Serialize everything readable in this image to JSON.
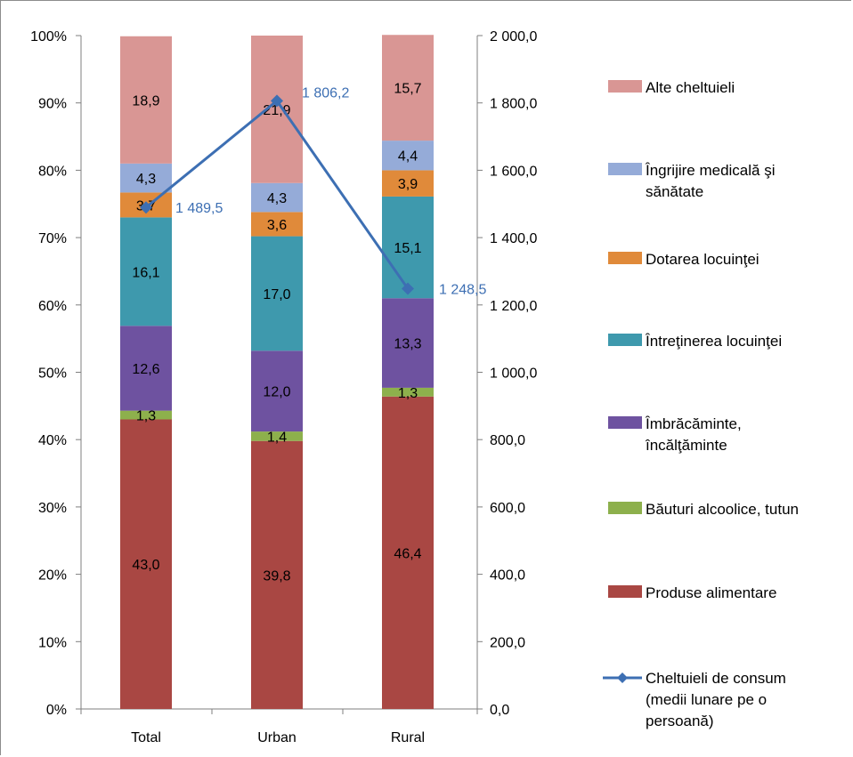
{
  "chart_data": {
    "type": "bar",
    "stacked": true,
    "categories": [
      "Total",
      "Urban",
      "Rural"
    ],
    "series": [
      {
        "name": "Produse alimentare",
        "values": [
          43.0,
          39.8,
          46.4
        ],
        "labels": [
          "43,0",
          "39,8",
          "46,4"
        ],
        "color": "#a94743"
      },
      {
        "name": "Băuturi alcoolice, tutun",
        "values": [
          1.3,
          1.4,
          1.3
        ],
        "labels": [
          "1,3",
          "1,4",
          "1,3"
        ],
        "color": "#8db04c"
      },
      {
        "name": "Îmbrăcăminte, încălţăminte",
        "values": [
          12.6,
          12.0,
          13.3
        ],
        "labels": [
          "12,6",
          "12,0",
          "13,3"
        ],
        "color": "#6e52a0"
      },
      {
        "name": "Întreţinerea locuinţei",
        "values": [
          16.1,
          17.0,
          15.1
        ],
        "labels": [
          "16,1",
          "17,0",
          "15,1"
        ],
        "color": "#3e99ad"
      },
      {
        "name": "Dotarea locuinţei",
        "values": [
          3.7,
          3.6,
          3.9
        ],
        "labels": [
          "3,7",
          "3,6",
          "3,9"
        ],
        "color": "#e08a3a"
      },
      {
        "name": "Îngrijire medicală şi sănătate",
        "values": [
          4.3,
          4.3,
          4.4
        ],
        "labels": [
          "4,3",
          "4,3",
          "4,4"
        ],
        "color": "#95abd8"
      },
      {
        "name": "Alte cheltuieli",
        "values": [
          18.9,
          21.9,
          15.7
        ],
        "labels": [
          "18,9",
          "21,9",
          "15,7"
        ],
        "color": "#d99694"
      }
    ],
    "line_series": {
      "name": "Cheltuieli de consum (medii lunare pe o persoană)",
      "values": [
        1489.5,
        1806.2,
        1248.5
      ],
      "labels": [
        "1 489,5",
        "1 806,2",
        "1 248,5"
      ],
      "color": "#3d6fb3",
      "axis": "secondary"
    },
    "y_left": {
      "ylim": [
        0,
        100
      ],
      "ticks": [
        "0%",
        "10%",
        "20%",
        "30%",
        "40%",
        "50%",
        "60%",
        "70%",
        "80%",
        "90%",
        "100%"
      ]
    },
    "y_right": {
      "ylim": [
        0,
        2000
      ],
      "ticks": [
        "0,0",
        "200,0",
        "400,0",
        "600,0",
        "800,0",
        "1 000,0",
        "1 200,0",
        "1 400,0",
        "1 600,0",
        "1 800,0",
        "2 000,0"
      ]
    },
    "legend": {
      "position": "right",
      "entries": [
        {
          "lines": [
            "Alte cheltuieli"
          ],
          "color": "#d99694",
          "kind": "box"
        },
        {
          "lines": [
            "Îngrijire medicală şi",
            "sănătate"
          ],
          "color": "#95abd8",
          "kind": "box"
        },
        {
          "lines": [
            "Dotarea locuinţei"
          ],
          "color": "#e08a3a",
          "kind": "box"
        },
        {
          "lines": [
            "Întreţinerea locuinţei"
          ],
          "color": "#3e99ad",
          "kind": "box"
        },
        {
          "lines": [
            "Îmbrăcăminte,",
            "încălţăminte"
          ],
          "color": "#6e52a0",
          "kind": "box"
        },
        {
          "lines": [
            "Băuturi alcoolice, tutun"
          ],
          "color": "#8db04c",
          "kind": "box"
        },
        {
          "lines": [
            "Produse alimentare"
          ],
          "color": "#a94743",
          "kind": "box"
        },
        {
          "lines": [
            "Cheltuieli de consum",
            "(medii lunare pe o",
            "persoană)"
          ],
          "color": "#3d6fb3",
          "kind": "line"
        }
      ]
    },
    "grid": false
  }
}
